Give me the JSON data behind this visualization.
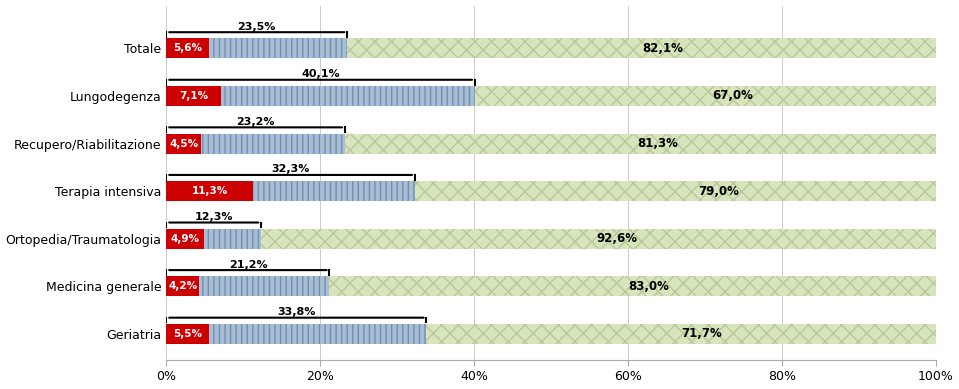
{
  "categories": [
    "Geriatria",
    "Medicina generale",
    "Ortopedia/Traumatologia",
    "Terapia intensiva",
    "Recupero/Riabilitazione",
    "Lungodegenza",
    "Totale"
  ],
  "nuove_ldp": [
    5.5,
    4.2,
    4.9,
    11.3,
    4.5,
    7.1,
    5.6
  ],
  "ldp_presenti": [
    28.3,
    17.0,
    7.4,
    21.0,
    18.7,
    33.0,
    17.9
  ],
  "no_ldp": [
    71.7,
    83.0,
    92.6,
    79.0,
    81.3,
    67.0,
    82.1
  ],
  "color_nuove": "#cc0000",
  "color_presenti": "#a8bcd4",
  "color_no_ldp": "#d8e4bc",
  "bar_height": 0.42,
  "figsize": [
    9.59,
    3.89
  ],
  "dpi": 100,
  "xlabel_ticks": [
    0,
    20,
    40,
    60,
    80,
    100
  ],
  "tick_labels": [
    "0%",
    "20%",
    "40%",
    "60%",
    "80%",
    "100%"
  ],
  "background_color": "#ffffff",
  "gridcolor": "#cccccc"
}
